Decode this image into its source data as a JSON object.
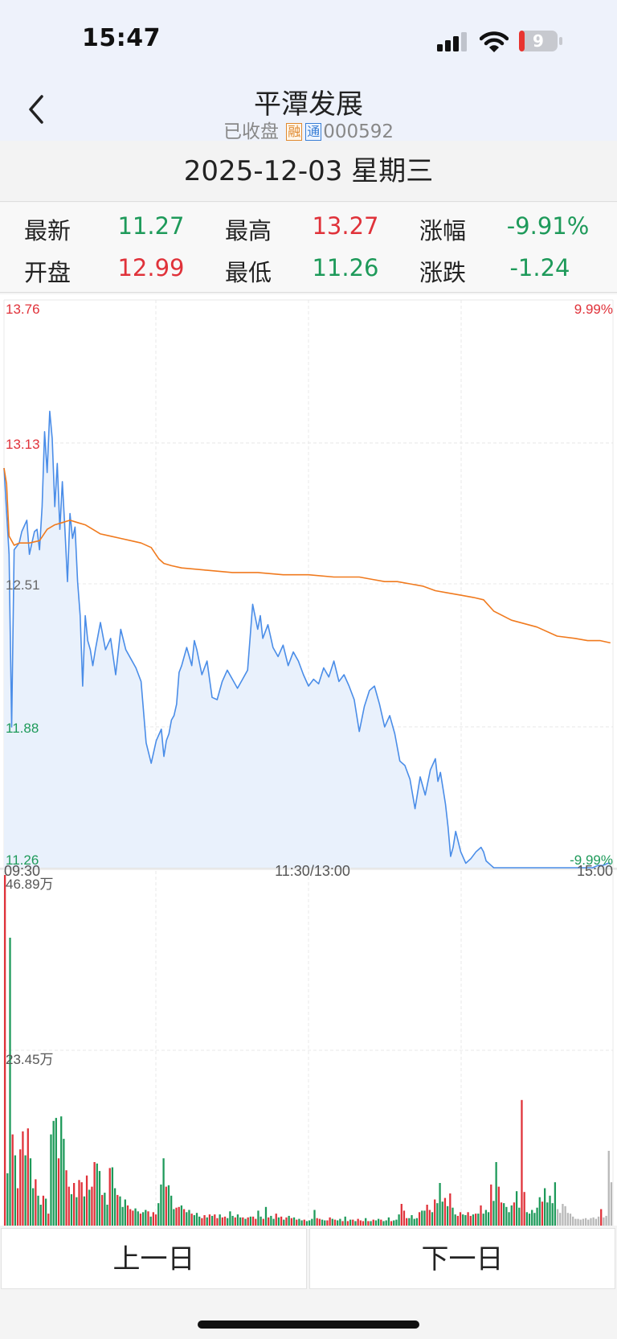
{
  "status_bar": {
    "time": "15:47",
    "battery": "9",
    "icons": [
      "signal-icon",
      "wifi-icon",
      "battery-icon"
    ]
  },
  "header": {
    "title": "平潭发展",
    "status": "已收盘",
    "tag_rong": "融",
    "tag_tong": "通",
    "code": "000592",
    "back_icon": "chevron-left-icon"
  },
  "date_bar": {
    "date": "2025-12-03 星期三"
  },
  "quote": {
    "latest_label": "最新",
    "latest_value": "11.27",
    "high_label": "最高",
    "high_value": "13.27",
    "change_pct_label": "涨幅",
    "change_pct_value": "-9.91%",
    "open_label": "开盘",
    "open_value": "12.99",
    "low_label": "最低",
    "low_value": "11.26",
    "change_label": "涨跌",
    "change_value": "-1.24"
  },
  "colors": {
    "up": "#e0323a",
    "down": "#1e9a5a",
    "price_line": "#4a8de8",
    "avg_line": "#f07a1e",
    "area_fill": "#e9f1fc",
    "neutral_volume": "#b8b8b8"
  },
  "chart_data": {
    "type": "line",
    "price_axis": {
      "ticks": [
        "13.76",
        "13.13",
        "12.51",
        "11.88",
        "11.26"
      ],
      "values": [
        13.76,
        13.13,
        12.51,
        11.88,
        11.26
      ],
      "top_pct": "9.99%",
      "bottom_pct": "-9.99%",
      "ylim": [
        11.26,
        13.76
      ]
    },
    "time_axis": {
      "labels": [
        "09:30",
        "11:30/13:00",
        "15:00"
      ],
      "minutes_total": 240
    },
    "price_series": {
      "name": "",
      "t": [
        0,
        2,
        3,
        4,
        6,
        7,
        9,
        10,
        11,
        12,
        13,
        14,
        15,
        16,
        17,
        18,
        19,
        20,
        21,
        22,
        23,
        24,
        25,
        26,
        27,
        28,
        29,
        30,
        31,
        32,
        33,
        34,
        35,
        36,
        38,
        40,
        42,
        44,
        46,
        48,
        50,
        52,
        54,
        56,
        58,
        60,
        62,
        63,
        64,
        65,
        66,
        67,
        68,
        69,
        70,
        72,
        73,
        74,
        75,
        76,
        78,
        80,
        82,
        84,
        86,
        88,
        90,
        92,
        94,
        96,
        98,
        100,
        101,
        102,
        104,
        106,
        108,
        110,
        112,
        114,
        116,
        118,
        120,
        122,
        124,
        126,
        128,
        130,
        132,
        134,
        136,
        138,
        140,
        142,
        144,
        146,
        148,
        150,
        152,
        154,
        156,
        158,
        160,
        162,
        164,
        166,
        168,
        170,
        171,
        172,
        173,
        174,
        175,
        176,
        177,
        178,
        180,
        182,
        184,
        186,
        188,
        189,
        190,
        192,
        193,
        194,
        196,
        198,
        200,
        202,
        204,
        206,
        208,
        210,
        212,
        214,
        216,
        218,
        220,
        222,
        224,
        226,
        228,
        230,
        232,
        234,
        236,
        238,
        239
      ],
      "v": [
        13.02,
        12.64,
        11.88,
        12.66,
        12.69,
        12.74,
        12.79,
        12.64,
        12.69,
        12.74,
        12.75,
        12.66,
        12.85,
        13.18,
        13.0,
        13.27,
        13.15,
        12.85,
        13.04,
        12.75,
        12.96,
        12.75,
        12.52,
        12.82,
        12.71,
        12.76,
        12.52,
        12.37,
        12.06,
        12.37,
        12.26,
        12.22,
        12.15,
        12.22,
        12.34,
        12.22,
        12.27,
        12.11,
        12.31,
        12.22,
        12.18,
        12.14,
        12.08,
        11.81,
        11.72,
        11.82,
        11.87,
        11.75,
        11.82,
        11.85,
        11.91,
        11.93,
        11.98,
        12.12,
        12.15,
        12.23,
        12.19,
        12.15,
        12.26,
        12.22,
        12.11,
        12.17,
        12.01,
        12.0,
        12.08,
        12.13,
        12.09,
        12.05,
        12.09,
        12.13,
        12.42,
        12.31,
        12.37,
        12.27,
        12.33,
        12.23,
        12.19,
        12.24,
        12.15,
        12.21,
        12.17,
        12.11,
        12.06,
        12.09,
        12.07,
        12.14,
        12.1,
        12.17,
        12.08,
        12.11,
        12.06,
        12.0,
        11.86,
        11.97,
        12.04,
        12.06,
        11.98,
        11.88,
        11.93,
        11.85,
        11.73,
        11.71,
        11.65,
        11.52,
        11.66,
        11.58,
        11.69,
        11.74,
        11.64,
        11.68,
        11.61,
        11.54,
        11.44,
        11.31,
        11.35,
        11.42,
        11.33,
        11.28,
        11.3,
        11.33,
        11.35,
        11.33,
        11.29,
        11.27,
        11.26,
        11.26,
        11.26,
        11.26,
        11.26,
        11.26,
        11.26,
        11.26,
        11.26,
        11.26,
        11.26,
        11.26,
        11.26,
        11.26,
        11.26,
        11.26,
        11.26,
        11.26,
        11.26,
        11.26,
        11.26,
        11.27,
        11.27,
        11.28,
        11.28
      ]
    },
    "avg_series": {
      "name": "",
      "t": [
        0,
        1,
        2,
        4,
        6,
        10,
        14,
        17,
        20,
        23,
        26,
        29,
        32,
        35,
        38,
        42,
        46,
        50,
        54,
        58,
        61,
        63,
        66,
        70,
        80,
        90,
        100,
        110,
        120,
        130,
        140,
        145,
        150,
        155,
        160,
        165,
        170,
        175,
        180,
        185,
        189,
        193,
        200,
        210,
        218,
        225,
        230,
        235,
        239
      ],
      "v": [
        13.02,
        12.95,
        12.72,
        12.68,
        12.69,
        12.69,
        12.7,
        12.75,
        12.77,
        12.78,
        12.79,
        12.78,
        12.77,
        12.75,
        12.73,
        12.72,
        12.71,
        12.7,
        12.69,
        12.67,
        12.62,
        12.6,
        12.59,
        12.58,
        12.57,
        12.56,
        12.56,
        12.55,
        12.55,
        12.54,
        12.54,
        12.53,
        12.52,
        12.52,
        12.51,
        12.5,
        12.48,
        12.47,
        12.46,
        12.45,
        12.44,
        12.39,
        12.35,
        12.32,
        12.28,
        12.27,
        12.26,
        12.26,
        12.25
      ]
    },
    "volume_axis": {
      "ticks": [
        "46.89万",
        "23.45万"
      ],
      "values": [
        46.89,
        23.45
      ],
      "unit": "万",
      "ylim": [
        0,
        46.89
      ]
    },
    "volume_series": {
      "values": [
        46.89,
        7,
        38.5,
        12.2,
        9.4,
        5,
        10.2,
        12.6,
        9.4,
        13,
        9,
        5,
        6.2,
        4,
        2.8,
        4,
        3.6,
        1.6,
        12.2,
        14,
        14.4,
        9,
        14.6,
        11.6,
        7.4,
        5.2,
        4.2,
        5.7,
        3.8,
        6.1,
        5.8,
        3.9,
        6.7,
        4.8,
        5.2,
        8.5,
        8.3,
        7.3,
        4.1,
        4.4,
        2.8,
        7.7,
        7.8,
        5,
        4.1,
        3.9,
        2.5,
        3.5,
        2.7,
        2.2,
        2,
        2.3,
        1.9,
        1.6,
        1.8,
        2.1,
        1.9,
        1.2,
        1.8,
        1.5,
        3,
        5.5,
        9,
        5.2,
        5.4,
        4,
        2.2,
        2.4,
        2.5,
        2.7,
        2.2,
        1.8,
        2.1,
        1.6,
        1.4,
        1.7,
        1.2,
        1,
        1.4,
        1.1,
        1.5,
        1.3,
        1.5,
        1,
        1.5,
        1.1,
        1.2,
        1,
        1.9,
        1.3,
        1.1,
        1.5,
        1.1,
        1.1,
        0.9,
        1.1,
        1.2,
        1.2,
        0.9,
        2,
        1.2,
        0.9,
        2.5,
        1.1,
        1.3,
        0.9,
        1.6,
        1.1,
        1.2,
        0.8,
        1.1,
        1.3,
        1,
        1.1,
        0.8,
        0.9,
        0.7,
        0.8,
        0.6,
        0.7,
        0.9,
        2.1,
        1,
        0.9,
        0.8,
        0.7,
        0.7,
        1.1,
        0.9,
        0.8,
        0.7,
        0.9,
        0.6,
        1.2,
        0.6,
        0.8,
        0.8,
        0.6,
        0.9,
        0.7,
        0.6,
        1,
        0.6,
        0.6,
        0.8,
        0.7,
        0.9,
        0.8,
        0.6,
        0.7,
        1.1,
        0.6,
        0.7,
        0.8,
        1.5,
        2.9,
        2,
        1,
        1,
        1.4,
        0.9,
        1,
        1.8,
        2,
        2,
        2.8,
        2.1,
        1.8,
        3.5,
        3,
        5.7,
        3.2,
        3.7,
        2.6,
        4.3,
        2.4,
        1.5,
        1.3,
        1.8,
        1.5,
        1.4,
        1.8,
        1.3,
        1.5,
        1.6,
        1.6,
        2.7,
        1.6,
        2.1,
        1.8,
        5.5,
        3.3,
        8.5,
        5.2,
        3.1,
        3,
        2.5,
        1.8,
        2.7,
        3.1,
        4.6,
        2.4,
        16.8,
        4.5,
        1.8,
        1.6,
        2.1,
        1.7,
        2.4,
        3.8,
        3.2,
        5,
        3.1,
        4,
        3,
        5.8,
        2.2,
        1.7,
        2.9,
        2.6,
        1.7,
        1.6,
        1.2,
        0.9,
        0.9,
        0.8,
        0.9,
        1,
        0.8,
        1,
        1.1,
        0.9,
        1.2,
        2.2,
        1.1,
        1.3,
        10,
        5.8
      ],
      "colors": "r,g,g,r,g,r,r,r,g,r,g,g,r,g,g,r,g,r,g,g,g,r,g,g,r,r,g,r,g,r,r,g,r,g,r,r,g,g,r,g,g,r,g,g,r,g,g,g,r,r,r,g,g,r,g,g,r,g,r,r,g,g,g,r,g,g,g,r,r,g,r,g,g,r,g,g,g,r,r,g,r,g,r,r,g,r,r,g,g,g,r,g,g,r,g,r,g,r,r,g,g,r,g,r,g,g,r,g,r,g,r,g,r,g,r,g,g,r,g,g,g,g,r,r,g,g,r,r,g,r,g,g,r,g,r,g,r,g,r,r,r,g,r,g,r,g,g,r,g,g,g,r,g,g,g,r,r,r,g,g,g,g,r,g,g,r,r,g,r,g,g,g,r,g,r,g,g,r,r,g,g,r,r,g,r,g,r,g,g,g,r,g,g,r,r,g,g,g,g,r,g,g,r,r,g,g,g,g,g,g,r,g,g,g,g,g,n,n,n,n,n,n,n,n,n,n,n,n,n,n,n,n,n,r,n"
    }
  },
  "buttons": {
    "prev_day": "上一日",
    "next_day": "下一日"
  }
}
